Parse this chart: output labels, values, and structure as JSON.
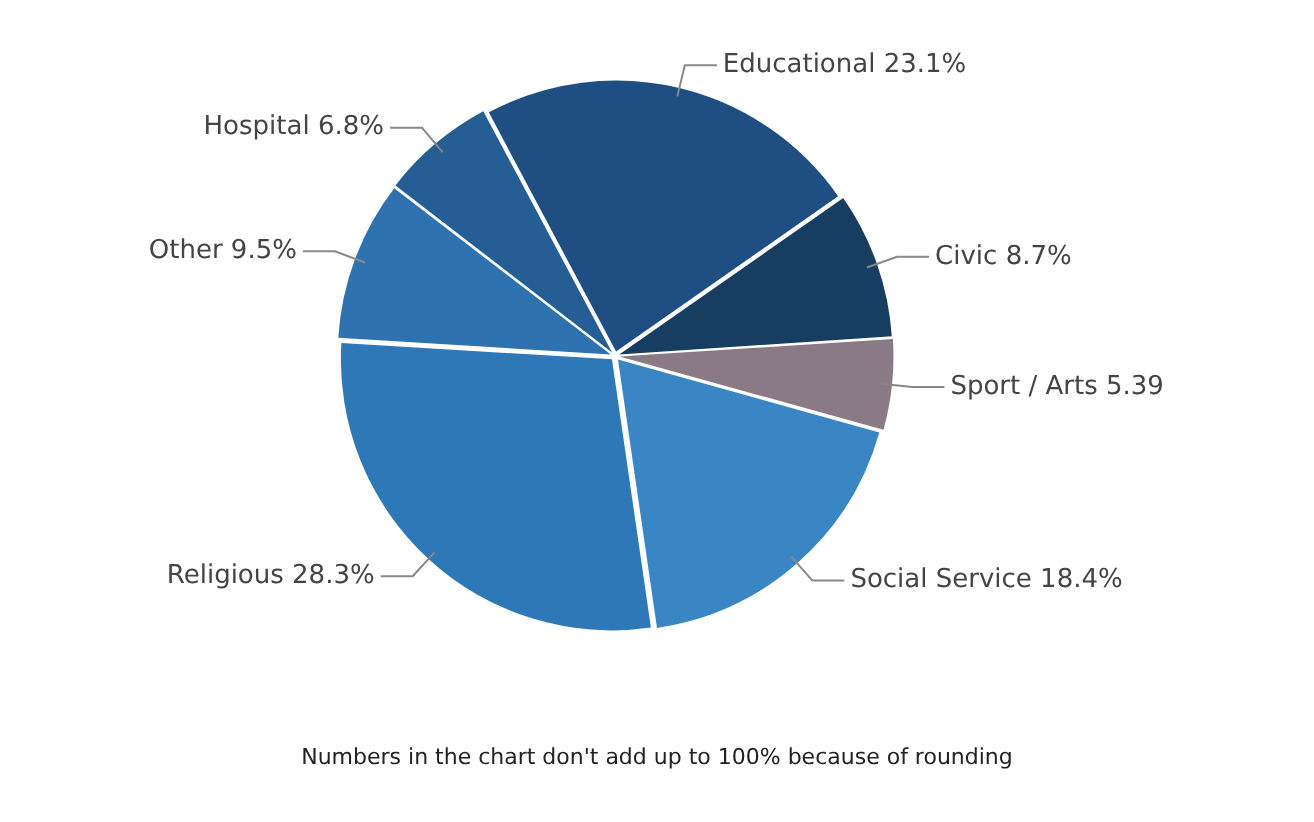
{
  "chart_data": {
    "type": "pie",
    "categories": [
      "Educational",
      "Civic",
      "Sport / Arts",
      "Social Service",
      "Religious",
      "Other",
      "Hospital"
    ],
    "values": [
      23.1,
      8.7,
      5.39,
      18.4,
      28.3,
      9.5,
      6.8
    ],
    "value_labels": [
      "23.1%",
      "8.7%",
      "5.39",
      "18.4%",
      "28.3%",
      "9.5%",
      "6.8%"
    ],
    "colors": [
      "#1f4f82",
      "#173d60",
      "#8a7a86",
      "#3a85c4",
      "#2e78b8",
      "#2f72b0",
      "#245e95"
    ],
    "annotations": [
      "Numbers in the chart don't add up to 100% because of rounding"
    ],
    "legend": false
  }
}
